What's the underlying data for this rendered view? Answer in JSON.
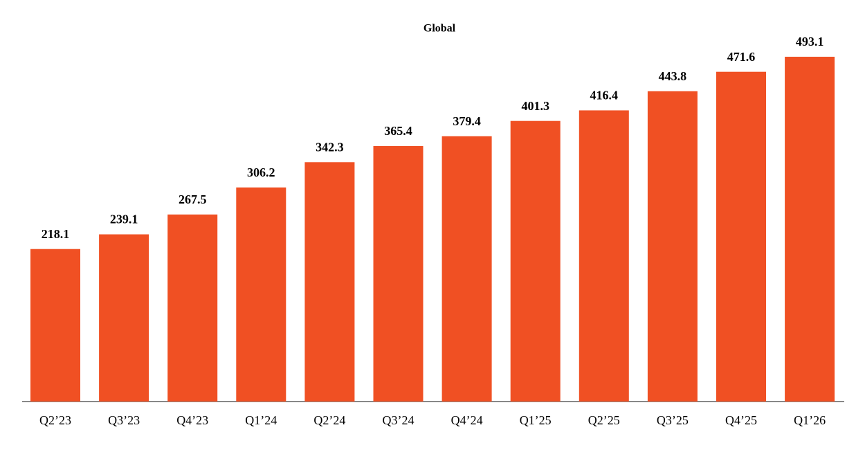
{
  "chart_data": {
    "type": "bar",
    "title": "Global",
    "categories": [
      "Q2’23",
      "Q3’23",
      "Q4’23",
      "Q1’24",
      "Q2’24",
      "Q3’24",
      "Q4’24",
      "Q1’25",
      "Q2’25",
      "Q3’25",
      "Q4’25",
      "Q1’26"
    ],
    "values": [
      218.1,
      239.1,
      267.5,
      306.2,
      342.3,
      365.4,
      379.4,
      401.3,
      416.4,
      443.8,
      471.6,
      493.1
    ],
    "color": "#f05023"
  }
}
